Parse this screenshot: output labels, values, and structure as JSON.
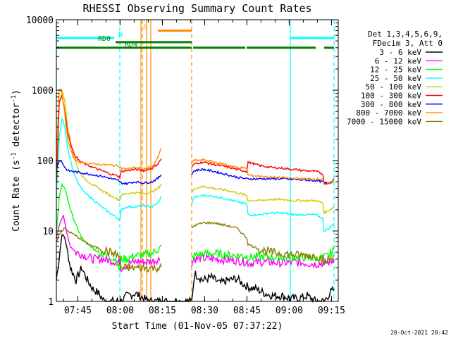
{
  "chart_data": {
    "type": "line",
    "title": "RHESSI Observing Summary Count Rates",
    "xlabel": "Start Time (01-Nov-05 07:37:22)",
    "ylabel_main": "Count Rate (s",
    "ylabel_sup1": "-1",
    "ylabel_mid": " detector",
    "ylabel_sup2": "-1",
    "ylabel_end": ")",
    "y_scale": "log",
    "ylim": [
      1,
      10000
    ],
    "xlim_minutes": [
      0,
      100
    ],
    "x_ticks": [
      {
        "m": 7.6,
        "label": "07:45"
      },
      {
        "m": 22.6,
        "label": "08:00"
      },
      {
        "m": 37.6,
        "label": "08:15"
      },
      {
        "m": 52.6,
        "label": "08:30"
      },
      {
        "m": 67.6,
        "label": "08:45"
      },
      {
        "m": 82.6,
        "label": "09:00"
      },
      {
        "m": 97.6,
        "label": "09:15"
      }
    ],
    "y_ticks": [
      {
        "v": 1,
        "label": "1"
      },
      {
        "v": 10,
        "label": "10"
      },
      {
        "v": 100,
        "label": "100"
      },
      {
        "v": 1000,
        "label": "1000"
      },
      {
        "v": 10000,
        "label": "10000"
      }
    ],
    "legend_header": [
      "Det 1,3,4,5,6,9,",
      "FDecim 3, Att 0"
    ],
    "legend_placement": "right",
    "series": [
      {
        "name": "3 - 6 keV",
        "color": "#000000",
        "x": [
          0,
          2,
          3,
          4,
          5,
          7,
          9,
          11,
          13,
          15,
          17,
          19,
          21,
          22.5,
          23,
          25,
          28,
          31,
          33,
          36,
          48,
          49,
          52,
          55,
          58,
          61,
          64,
          66,
          68,
          71,
          74,
          77,
          80,
          83,
          86,
          89,
          92,
          95,
          97,
          98.5
        ],
        "y": [
          2,
          9,
          8,
          5,
          3,
          2,
          3,
          2,
          1.5,
          1.3,
          1,
          1,
          1,
          1,
          1,
          1.2,
          1.3,
          1.1,
          1,
          1,
          1,
          2.5,
          2,
          2.2,
          1.8,
          2,
          2.1,
          1.8,
          1.6,
          1.5,
          1.3,
          1.2,
          1.2,
          1.1,
          1.1,
          1.2,
          1,
          1,
          1.3,
          1.5
        ]
      },
      {
        "name": "6 - 12 keV",
        "color": "#ff00ff",
        "x": [
          0,
          1.5,
          2.5,
          3.5,
          5,
          7,
          10,
          13,
          16,
          19,
          22.5,
          23,
          26,
          29,
          32,
          35,
          37,
          48,
          49,
          52,
          56,
          60,
          64,
          67.5,
          68,
          72,
          76,
          80,
          84,
          88,
          92,
          95,
          97,
          98.5
        ],
        "y": [
          8,
          14,
          17,
          10,
          6,
          5,
          4.5,
          4,
          4,
          3.8,
          3.6,
          3,
          3.5,
          3.7,
          3.6,
          3.8,
          4,
          3.5,
          4,
          4.1,
          4,
          3.9,
          3.8,
          3.6,
          3.5,
          3.6,
          3.6,
          3.5,
          3.6,
          3.5,
          3.4,
          3.5,
          3.6,
          4
        ]
      },
      {
        "name": "12 - 25 keV",
        "color": "#00ff00",
        "x": [
          0,
          1,
          2,
          3,
          4,
          5,
          7,
          9,
          12,
          15,
          18,
          21,
          22.5,
          23,
          25,
          28,
          31,
          34,
          36,
          37.5,
          48,
          49,
          52,
          56,
          60,
          64,
          67.5,
          68,
          72,
          76,
          80,
          84,
          88,
          92,
          95,
          97,
          98.5
        ],
        "y": [
          9,
          30,
          45,
          40,
          28,
          20,
          12,
          8,
          6,
          5,
          4.5,
          4,
          2.8,
          4,
          4,
          4.5,
          4.5,
          4.8,
          5.5,
          6,
          4,
          4.5,
          4.7,
          4.8,
          4.6,
          4.5,
          4.4,
          4.2,
          4.3,
          4.3,
          4.2,
          4.3,
          4.2,
          4.1,
          4.2,
          4.6,
          5.5
        ]
      },
      {
        "name": "25 - 50 keV",
        "color": "#00ffff",
        "x": [
          0,
          1,
          2,
          3,
          4,
          6,
          8,
          10,
          13,
          16,
          19,
          22,
          22.5,
          23,
          25,
          28,
          31,
          34,
          36,
          37.5,
          48,
          49,
          52,
          56,
          60,
          64,
          67.5,
          68,
          72,
          76,
          80,
          84,
          88,
          92,
          94.5,
          95,
          97,
          98.5
        ],
        "y": [
          30,
          200,
          400,
          300,
          150,
          70,
          45,
          35,
          28,
          22,
          18,
          15,
          14,
          20,
          22,
          22,
          23,
          22,
          25,
          32,
          25,
          30,
          32,
          31,
          29,
          26,
          24,
          17,
          17,
          18,
          18,
          17,
          17,
          17,
          15,
          10,
          11,
          13
        ]
      },
      {
        "name": "50 - 100 keV",
        "color": "#cccc00",
        "x": [
          0,
          1,
          2,
          3,
          4,
          6,
          8,
          10,
          13,
          16,
          19,
          22,
          22.5,
          23,
          25,
          28,
          31,
          34,
          36,
          37.5,
          48,
          49,
          52,
          56,
          60,
          64,
          67.5,
          68,
          72,
          76,
          80,
          84,
          88,
          92,
          94.5,
          95,
          97,
          98.5
        ],
        "y": [
          40,
          600,
          1000,
          700,
          300,
          120,
          70,
          55,
          45,
          38,
          32,
          28,
          27,
          32,
          34,
          35,
          34,
          36,
          40,
          48,
          35,
          40,
          43,
          40,
          38,
          35,
          32,
          27,
          27,
          28,
          28,
          27,
          27,
          27,
          25,
          18,
          20,
          22
        ]
      },
      {
        "name": "100 - 300 keV",
        "color": "#ff0000",
        "x": [
          0,
          1,
          2,
          3,
          4,
          6,
          8,
          10,
          13,
          16,
          19,
          22,
          22.5,
          23,
          25,
          28,
          31,
          34,
          36,
          37.5,
          48,
          49,
          52,
          56,
          60,
          64,
          67.5,
          68,
          72,
          76,
          80,
          84,
          88,
          92,
          94.5,
          95,
          97,
          98.5
        ],
        "y": [
          50,
          700,
          850,
          500,
          250,
          130,
          100,
          90,
          80,
          72,
          65,
          60,
          58,
          70,
          72,
          75,
          72,
          78,
          90,
          110,
          80,
          90,
          95,
          88,
          82,
          75,
          70,
          95,
          85,
          80,
          78,
          75,
          72,
          70,
          65,
          48,
          48,
          55
        ]
      },
      {
        "name": "300 - 800 keV",
        "color": "#0000ff",
        "x": [
          0,
          1,
          2,
          3,
          4,
          6,
          8,
          10,
          13,
          16,
          19,
          22,
          22.5,
          23,
          25,
          28,
          31,
          34,
          36,
          37.5,
          48,
          49,
          52,
          56,
          60,
          64,
          67.5,
          68,
          72,
          76,
          80,
          84,
          88,
          92,
          94.5,
          95,
          97,
          98.5
        ],
        "y": [
          80,
          100,
          95,
          80,
          72,
          70,
          68,
          66,
          63,
          60,
          56,
          52,
          50,
          48,
          47,
          50,
          48,
          50,
          56,
          65,
          65,
          72,
          75,
          70,
          64,
          58,
          55,
          55,
          55,
          55,
          55,
          54,
          53,
          52,
          50,
          48,
          48,
          52
        ]
      },
      {
        "name": "800 - 7000 keV",
        "color": "#ff8c00",
        "x": [
          0,
          1,
          2,
          3,
          4,
          6,
          8,
          10,
          13,
          16,
          19,
          22,
          22.5,
          23,
          25,
          28,
          31,
          34,
          36,
          37.5,
          48,
          49,
          52,
          56,
          60,
          64,
          67.5,
          68,
          72,
          76,
          80,
          84,
          88,
          92,
          94.5,
          95,
          97,
          98.5
        ],
        "y": [
          100,
          1050,
          900,
          450,
          200,
          110,
          95,
          92,
          90,
          88,
          86,
          84,
          83,
          78,
          76,
          80,
          76,
          82,
          110,
          160,
          95,
          100,
          102,
          95,
          88,
          80,
          78,
          62,
          60,
          58,
          57,
          56,
          55,
          55,
          55,
          44,
          48,
          52
        ]
      },
      {
        "name": "7000 - 15000 keV",
        "color": "#8b7d00",
        "x": [
          0,
          1,
          2,
          3,
          4,
          6,
          8,
          10,
          13,
          16,
          19,
          22,
          22.5,
          23,
          25,
          28,
          31,
          34,
          36,
          37.5,
          48,
          49,
          52,
          56,
          60,
          64,
          67.5,
          68,
          72,
          76,
          80,
          84,
          88,
          92,
          94.5,
          95,
          97,
          98.5
        ],
        "y": [
          7,
          9,
          10,
          11,
          10,
          9,
          8,
          7,
          6,
          5.5,
          5,
          4.5,
          4,
          3,
          3,
          3,
          3,
          3,
          3,
          3,
          11,
          12,
          13,
          13,
          12,
          11,
          8,
          6.5,
          5.5,
          5,
          4.8,
          4.6,
          4.5,
          4.4,
          4,
          3.5,
          4,
          4.5
        ]
      }
    ],
    "vlines": [
      {
        "m": 0,
        "color": "#00ffff",
        "style": "solid"
      },
      {
        "m": 22.5,
        "color": "#00ffff",
        "style": "dashed"
      },
      {
        "m": 30.5,
        "color": "#ff8c00",
        "style": "dashed"
      },
      {
        "m": 32,
        "color": "#ff8c00",
        "style": "solid"
      },
      {
        "m": 30,
        "color": "#ff8c00",
        "style": "solid"
      },
      {
        "m": 48,
        "color": "#ff8c00",
        "style": "dashed"
      },
      {
        "m": 33.5,
        "color": "#ff8c00",
        "style": "solid"
      },
      {
        "m": 83,
        "color": "#00ffff",
        "style": "solid"
      },
      {
        "m": 98.5,
        "color": "#00ffff",
        "style": "dashed"
      }
    ],
    "bars": [
      {
        "label": "N",
        "color": "#00ffff",
        "y": 5500,
        "segments": [
          [
            0,
            20.5
          ],
          [
            83,
            98.5
          ]
        ],
        "label_m": 22.8
      },
      {
        "label": "S",
        "color": "#ff8c00",
        "y": 7000,
        "segments": [
          [
            36,
            48
          ]
        ],
        "label_m": 31.5
      },
      {
        "label": "RD0",
        "color": "#008000",
        "y": 4800,
        "segments": [
          [
            21,
            48
          ]
        ],
        "label_m": 17
      },
      {
        "label": "RD4",
        "color": "#008000",
        "y": 4000,
        "segments": [
          [
            0,
            48
          ],
          [
            48.5,
            67
          ],
          [
            67.5,
            92
          ],
          [
            95,
            98.5
          ]
        ],
        "label_m": 26.5
      }
    ]
  },
  "footer_date": "20-Oct-2021 20:42"
}
